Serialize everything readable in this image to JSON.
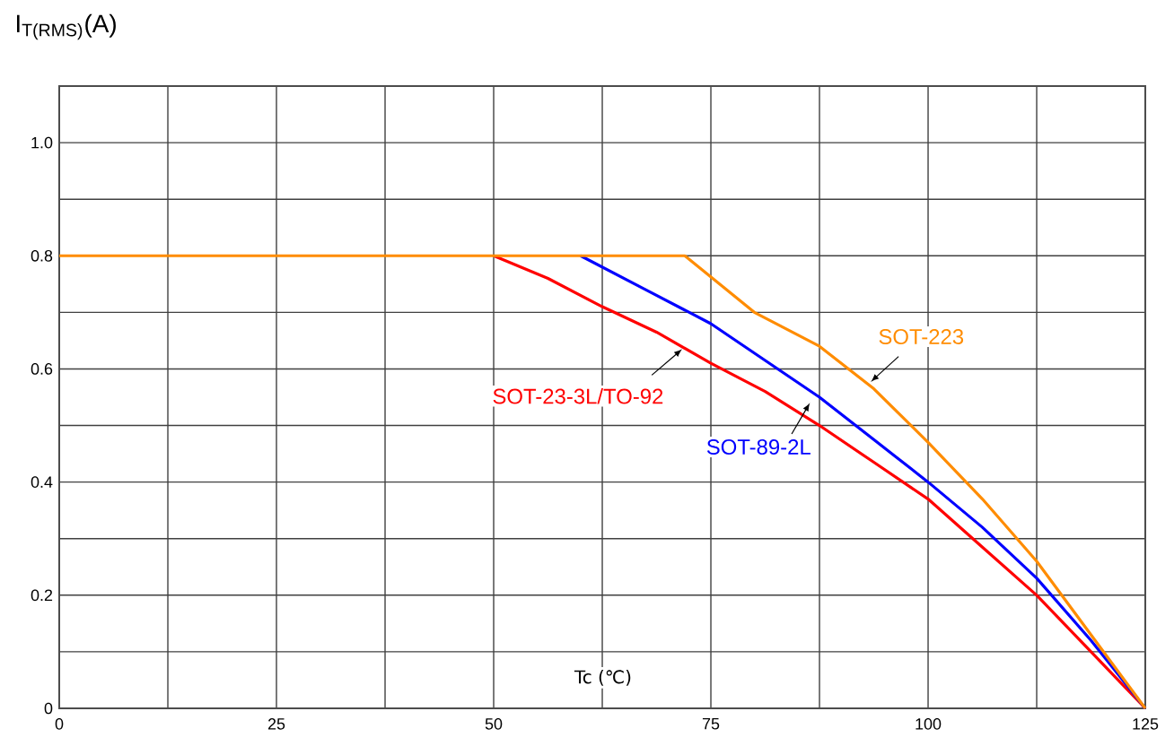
{
  "chart_data": {
    "type": "line",
    "ylabel": "I$_{T(RMS)}$(A)",
    "xlabel": "Tc (℃)",
    "xlim": [
      0,
      125
    ],
    "ylim": [
      0,
      1.1
    ],
    "xticks": [
      0,
      {
        "value": 12.5,
        "label": null
      },
      25,
      {
        "value": 37.5,
        "label": null
      },
      50,
      {
        "value": 62.5,
        "label": null
      },
      75,
      {
        "value": 87.5,
        "label": null
      },
      100,
      {
        "value": 112.5,
        "label": null
      },
      125
    ],
    "yticks": [
      0,
      {
        "value": 0.1,
        "label": null
      },
      {
        "value": 0.2,
        "label": "0.2"
      },
      {
        "value": 0.3,
        "label": null
      },
      {
        "value": 0.4,
        "label": "0.4"
      },
      {
        "value": 0.5,
        "label": null
      },
      {
        "value": 0.6,
        "label": "0.6"
      },
      {
        "value": 0.7,
        "label": null
      },
      {
        "value": 0.8,
        "label": "0.8"
      },
      {
        "value": 0.9,
        "label": null
      },
      {
        "value": 1.0,
        "label": "1.0"
      },
      {
        "value": 1.1,
        "label": null
      }
    ],
    "grid": true,
    "line_style": "solid",
    "series": [
      {
        "name": "SOT-23-3L/TO-92",
        "color": "#ff0000",
        "x": [
          50,
          56.25,
          62.5,
          68.75,
          75,
          81.25,
          87.5,
          93.75,
          100,
          106.25,
          112.5,
          118.75,
          125
        ],
        "values": [
          0.8,
          0.76,
          0.71,
          0.665,
          0.61,
          0.56,
          0.5,
          0.435,
          0.37,
          0.285,
          0.2,
          0.1,
          0
        ]
      },
      {
        "name": "SOT-89-2L",
        "color": "#0000ff",
        "x": [
          60,
          67.5,
          75,
          81.25,
          87.5,
          93.75,
          100,
          106.25,
          112.5,
          118.75,
          125
        ],
        "values": [
          0.8,
          0.74,
          0.68,
          0.615,
          0.55,
          0.475,
          0.4,
          0.32,
          0.23,
          0.12,
          0
        ]
      },
      {
        "name": "SOT-223",
        "color": "#ff8c00",
        "x": [
          0,
          72,
          80,
          87.5,
          93.75,
          100,
          106.25,
          112.5,
          118.75,
          125
        ],
        "values": [
          0.8,
          0.8,
          0.7,
          0.64,
          0.565,
          0.47,
          0.37,
          0.26,
          0.13,
          0
        ]
      }
    ]
  }
}
